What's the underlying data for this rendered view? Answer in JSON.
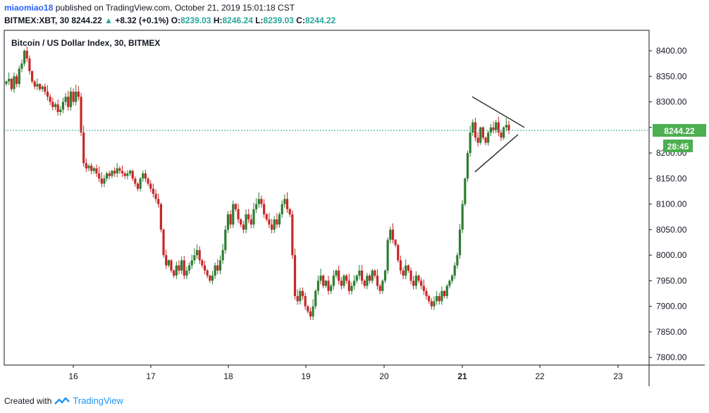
{
  "header": {
    "user": "miaomiao18",
    "published": "published on TradingView.com, October 21, 2019 15:01:18 CST",
    "symbol": "BITMEX:XBT, 30",
    "last": "8244.22",
    "change": "+8.32 (+0.1%)",
    "o_label": "O:",
    "o": "8239.03",
    "h_label": "H:",
    "h": "8246.24",
    "l_label": "L:",
    "l": "8239.03",
    "c_label": "C:",
    "c": "8244.22"
  },
  "footer": {
    "created_with": "Created with",
    "brand": "TradingView"
  },
  "colors": {
    "up": "#26a69a",
    "down": "#b71c1c",
    "upBody": "#2e7d32",
    "downBody": "#c62828",
    "axis": "#131722",
    "priceTag": "#4caf50"
  },
  "chart_data": {
    "type": "candlestick",
    "title": "Bitcoin / US Dollar Index, 30, BITMEX",
    "x_tick_labels": [
      "16",
      "17",
      "18",
      "19",
      "20",
      "21",
      "22",
      "23"
    ],
    "y_tick_labels": [
      "8400.00",
      "8350.00",
      "8300.00",
      "8250.00",
      "8200.00",
      "8150.00",
      "8100.00",
      "8050.00",
      "8000.00",
      "7950.00",
      "7900.00",
      "7850.00",
      "7800.00"
    ],
    "ylim": [
      7785,
      8440
    ],
    "last_price": 8244.22,
    "last_price_label": "8244.22",
    "countdown": "28:45",
    "closes": [
      8340,
      8345,
      8325,
      8350,
      8335,
      8365,
      8375,
      8400,
      8385,
      8360,
      8340,
      8330,
      8335,
      8325,
      8330,
      8320,
      8310,
      8300,
      8290,
      8295,
      8280,
      8285,
      8300,
      8310,
      8290,
      8320,
      8300,
      8320,
      8310,
      8240,
      8180,
      8170,
      8175,
      8165,
      8170,
      8160,
      8150,
      8140,
      8150,
      8160,
      8155,
      8165,
      8160,
      8170,
      8165,
      8160,
      8155,
      8160,
      8165,
      8150,
      8140,
      8130,
      8150,
      8160,
      8150,
      8140,
      8130,
      8120,
      8110,
      8100,
      8050,
      8000,
      7980,
      7990,
      7970,
      7960,
      7980,
      7970,
      7990,
      7960,
      7970,
      7980,
      7990,
      8000,
      8010,
      7990,
      7980,
      7970,
      7960,
      7950,
      7960,
      7980,
      7970,
      7990,
      8010,
      8050,
      8080,
      8060,
      8100,
      8090,
      8070,
      8060,
      8050,
      8080,
      8070,
      8060,
      8090,
      8100,
      8110,
      8100,
      8080,
      8070,
      8060,
      8050,
      8070,
      8060,
      8080,
      8100,
      8110,
      8090,
      8080,
      8000,
      7920,
      7910,
      7930,
      7920,
      7900,
      7890,
      7880,
      7900,
      7930,
      7950,
      7960,
      7940,
      7950,
      7930,
      7940,
      7960,
      7970,
      7950,
      7940,
      7960,
      7950,
      7930,
      7940,
      7950,
      7960,
      7970,
      7950,
      7940,
      7960,
      7950,
      7970,
      7960,
      7940,
      7930,
      7950,
      7970,
      8030,
      8050,
      8030,
      8020,
      7990,
      7970,
      7960,
      7980,
      7970,
      7950,
      7940,
      7960,
      7950,
      7940,
      7930,
      7920,
      7910,
      7900,
      7910,
      7920,
      7910,
      7930,
      7920,
      7940,
      7950,
      7960,
      7980,
      8000,
      8050,
      8100,
      8150,
      8200,
      8240,
      8260,
      8230,
      8220,
      8250,
      8230,
      8220,
      8240,
      8250,
      8245,
      8260,
      8240,
      8230,
      8250,
      8255,
      8244
    ],
    "annotations": [
      "triangle-upper-trendline",
      "triangle-lower-trendline"
    ]
  }
}
